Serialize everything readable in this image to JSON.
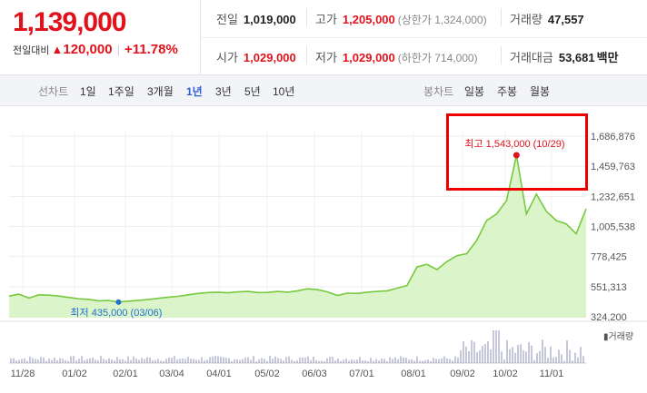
{
  "summary": {
    "price": "1,139,000",
    "change_label": "전일대비",
    "change_value": "120,000",
    "change_pct": "+11.78%"
  },
  "info": {
    "prev_close_label": "전일",
    "prev_close": "1,019,000",
    "high_label": "고가",
    "high": "1,205,000",
    "upper_limit": "(상한가 1,324,000)",
    "volume_label": "거래량",
    "volume": "47,557",
    "open_label": "시가",
    "open": "1,029,000",
    "low_label": "저가",
    "low": "1,029,000",
    "lower_limit": "(하한가 714,000)",
    "value_label": "거래대금",
    "value": "53,681",
    "value_unit": "백만"
  },
  "tabs": {
    "line_label": "선차트",
    "line": [
      "1일",
      "1주일",
      "3개월",
      "1년",
      "3년",
      "5년",
      "10년"
    ],
    "active": "1년",
    "candle_label": "봉차트",
    "candle": [
      "일봉",
      "주봉",
      "월봉"
    ]
  },
  "colors": {
    "up": "#e0131c",
    "line": "#77c940",
    "fill": "#d6f2c0",
    "low_marker": "#1f6fcf",
    "volume": "#8f8fb8"
  },
  "chart_data": {
    "type": "area",
    "ylim": [
      324200,
      1700000
    ],
    "y_ticks": [
      "1,686,876",
      "1,459,763",
      "1,232,651",
      "1,005,538",
      "778,425",
      "551,313",
      "324,200"
    ],
    "x_ticks": [
      "11/28",
      "01/02",
      "02/01",
      "03/04",
      "04/01",
      "05/02",
      "06/03",
      "07/01",
      "08/01",
      "09/02",
      "10/02",
      "11/01"
    ],
    "series": [
      {
        "values": [
          480000,
          495000,
          465000,
          490000,
          487000,
          480000,
          470000,
          460000,
          456000,
          445000,
          447000,
          435000,
          442000,
          448000,
          455000,
          463000,
          472000,
          478000,
          490000,
          500000,
          507000,
          510000,
          505000,
          512000,
          515000,
          507000,
          508000,
          515000,
          510000,
          520000,
          535000,
          529000,
          512000,
          485000,
          502000,
          500000,
          510000,
          515000,
          520000,
          540000,
          560000,
          700000,
          720000,
          680000,
          740000,
          785000,
          800000,
          900000,
          1050000,
          1100000,
          1200000,
          1543000,
          1100000,
          1250000,
          1120000,
          1050000,
          1025000,
          950000,
          1140000
        ]
      }
    ],
    "volume_label": "거래량",
    "max_label": "최고 1,543,000 (10/29)",
    "min_label": "최저 435,000 (03/06)"
  }
}
